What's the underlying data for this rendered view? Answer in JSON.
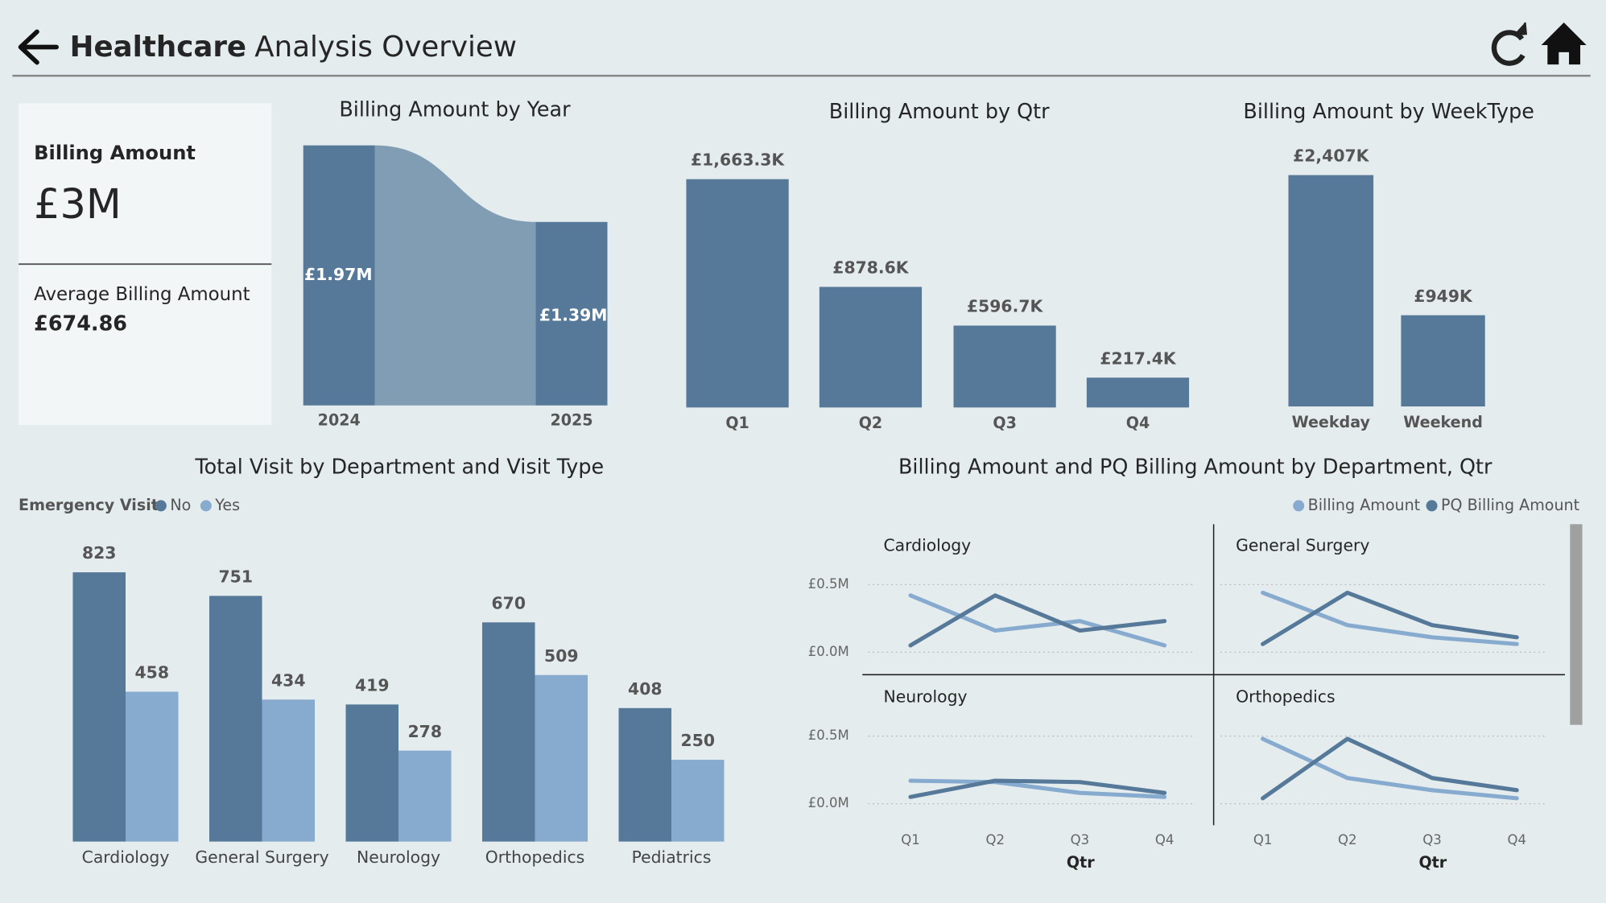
{
  "header": {
    "title_bold": "Healthcare",
    "title_rest": "Analysis Overview"
  },
  "kpi": {
    "label": "Billing Amount",
    "value": "£3M",
    "avg_label": "Average Billing Amount",
    "avg_value": "£674.86"
  },
  "chart_data": [
    {
      "type": "ribbon",
      "title": "Billing Amount by Year",
      "categories": [
        "2024",
        "2025"
      ],
      "values": [
        1.97,
        1.39
      ],
      "value_labels": [
        "£1.97M",
        "£1.39M"
      ],
      "color": "#56799a",
      "ribbon_color": "#809db4"
    },
    {
      "type": "bar",
      "title": "Billing Amount by Qtr",
      "categories": [
        "Q1",
        "Q2",
        "Q3",
        "Q4"
      ],
      "values": [
        1663.3,
        878.6,
        596.7,
        217.4
      ],
      "value_labels": [
        "£1,663.3K",
        "£878.6K",
        "£596.7K",
        "£217.4K"
      ],
      "color": "#56799a"
    },
    {
      "type": "bar",
      "title": "Billing Amount by WeekType",
      "categories": [
        "Weekday",
        "Weekend"
      ],
      "values": [
        2407,
        949
      ],
      "value_labels": [
        "£2,407K",
        "£949K"
      ],
      "color": "#56799a"
    },
    {
      "type": "grouped_bar",
      "title": "Total Visit by Department and Visit Type",
      "legend_title": "Emergency Visit",
      "categories": [
        "Cardiology",
        "General Surgery",
        "Neurology",
        "Orthopedics",
        "Pediatrics"
      ],
      "series": [
        {
          "name": "No",
          "color": "#56799a",
          "values": [
            823,
            751,
            419,
            670,
            408
          ]
        },
        {
          "name": "Yes",
          "color": "#87aacf",
          "values": [
            458,
            434,
            278,
            509,
            250
          ]
        }
      ]
    },
    {
      "type": "small_multiples_line",
      "title": "Billing Amount and PQ Billing Amount by Department, Qtr",
      "legend": "top-right",
      "panels": [
        "Cardiology",
        "General Surgery",
        "Neurology",
        "Orthopedics"
      ],
      "x": [
        "Q1",
        "Q2",
        "Q3",
        "Q4"
      ],
      "xlabel": "Qtr",
      "ylim": [
        -0.15,
        0.65
      ],
      "yticks": [
        {
          "value": 0,
          "label": "£0.0M"
        },
        {
          "value": 0.5,
          "label": "£0.5M"
        }
      ],
      "grid": true,
      "series": [
        {
          "name": "Billing Amount",
          "color": "#87aacf",
          "values": [
            [
              0.42,
              0.16,
              0.23,
              0.05
            ],
            [
              0.44,
              0.2,
              0.11,
              0.06
            ],
            [
              0.17,
              0.16,
              0.08,
              0.05
            ],
            [
              0.48,
              0.19,
              0.1,
              0.04
            ]
          ]
        },
        {
          "name": "PQ Billing Amount",
          "color": "#56799a",
          "values": [
            [
              0.05,
              0.42,
              0.16,
              0.23
            ],
            [
              0.06,
              0.44,
              0.2,
              0.11
            ],
            [
              0.05,
              0.17,
              0.16,
              0.08
            ],
            [
              0.04,
              0.48,
              0.19,
              0.1
            ]
          ]
        }
      ]
    }
  ]
}
